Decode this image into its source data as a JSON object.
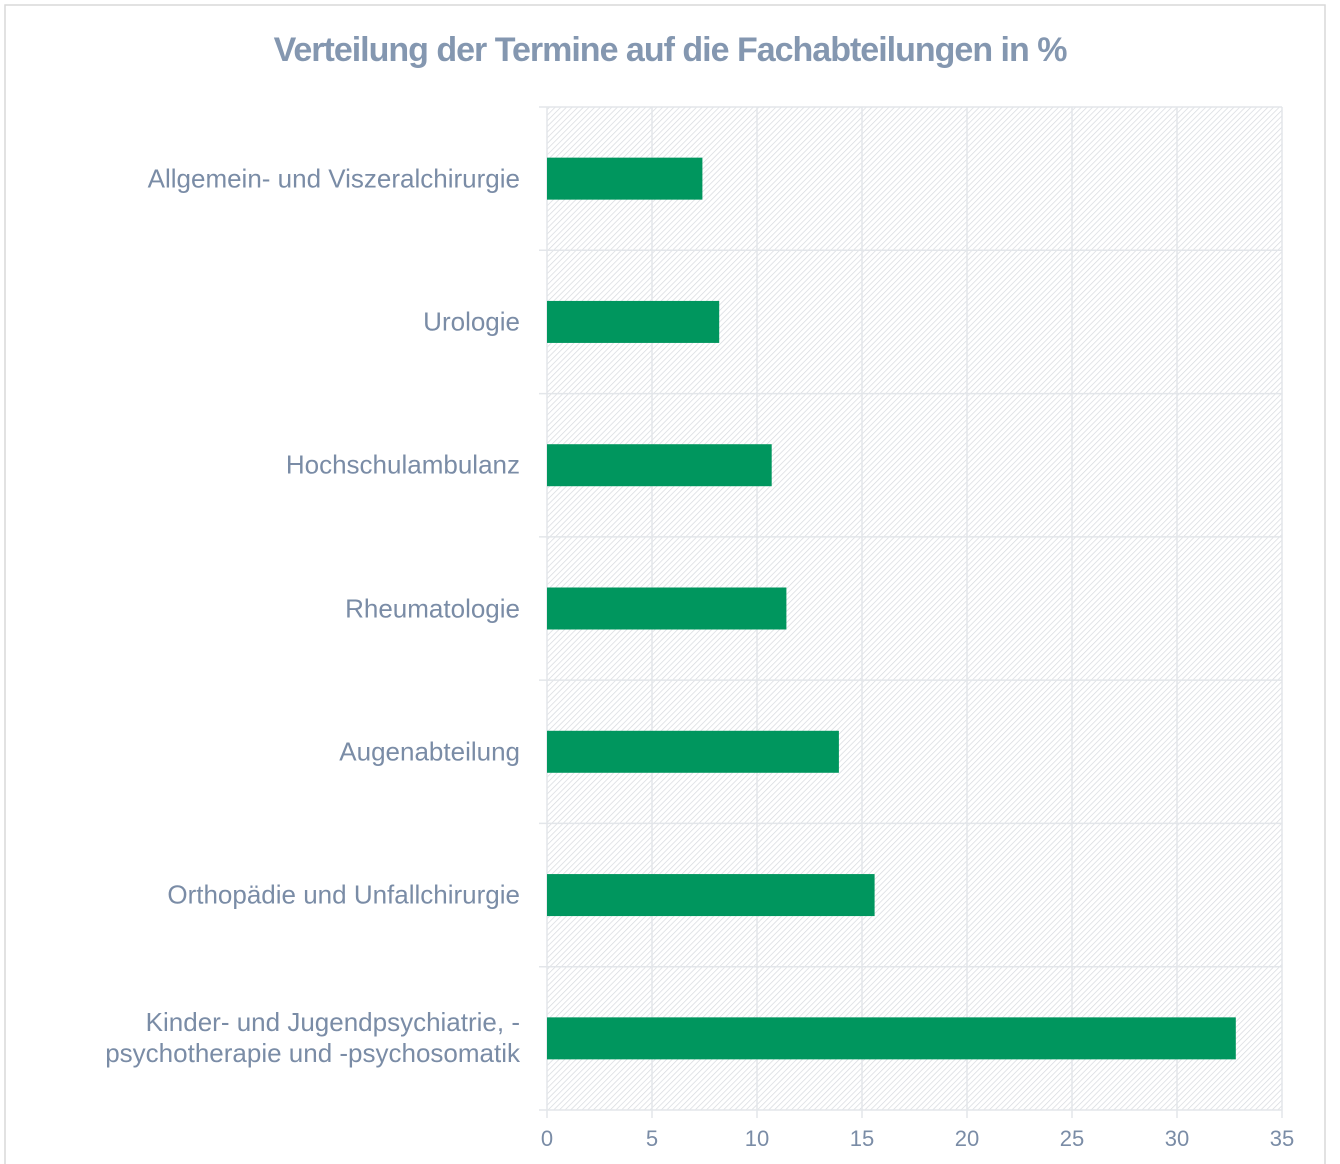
{
  "chart_data": {
    "type": "bar",
    "orientation": "horizontal",
    "title": "Verteilung der Termine auf die Fachabteilungen in %",
    "categories": [
      "Allgemein- und Viszeralchirurgie",
      "Urologie",
      "Hochschulambulanz",
      "Rheumatologie",
      "Augenabteilung",
      "Orthopädie und Unfallchirurgie",
      "Kinder- und Jugendpsychiatrie, -\npsychotherapie und -psychosomatik"
    ],
    "values": [
      7.4,
      8.2,
      10.7,
      11.4,
      13.9,
      15.6,
      32.8
    ],
    "color": "#00965e",
    "xlim": [
      0,
      35
    ],
    "xticks": [
      0,
      5,
      10,
      15,
      20,
      25,
      30,
      35
    ],
    "grid": true
  }
}
